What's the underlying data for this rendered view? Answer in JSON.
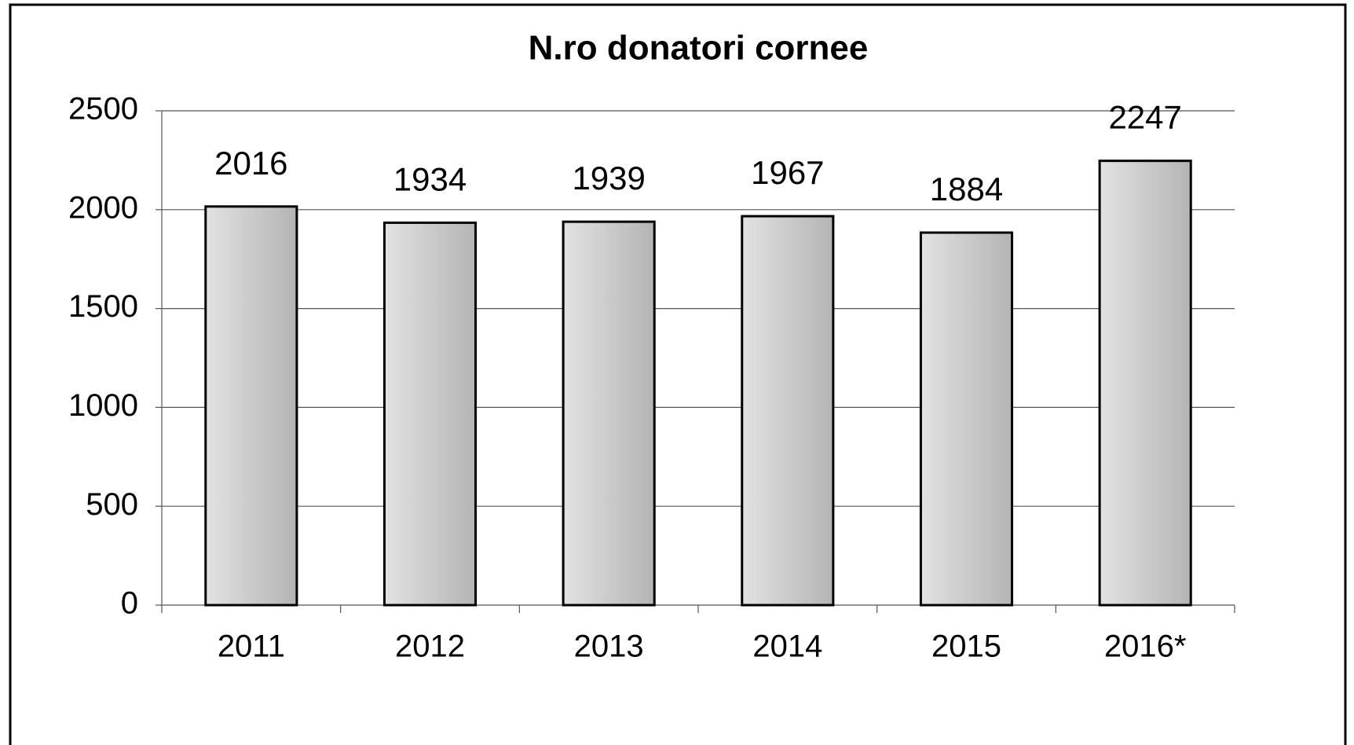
{
  "chart_data": {
    "type": "bar",
    "title": "N.ro donatori cornee",
    "categories": [
      "2011",
      "2012",
      "2013",
      "2014",
      "2015",
      "2016*"
    ],
    "values": [
      2016,
      1934,
      1939,
      1967,
      1884,
      2247
    ],
    "color": "#c8c8c8",
    "ylim": [
      0,
      2500
    ],
    "yticks": [
      0,
      500,
      1000,
      1500,
      2000,
      2500
    ],
    "grid": true
  }
}
